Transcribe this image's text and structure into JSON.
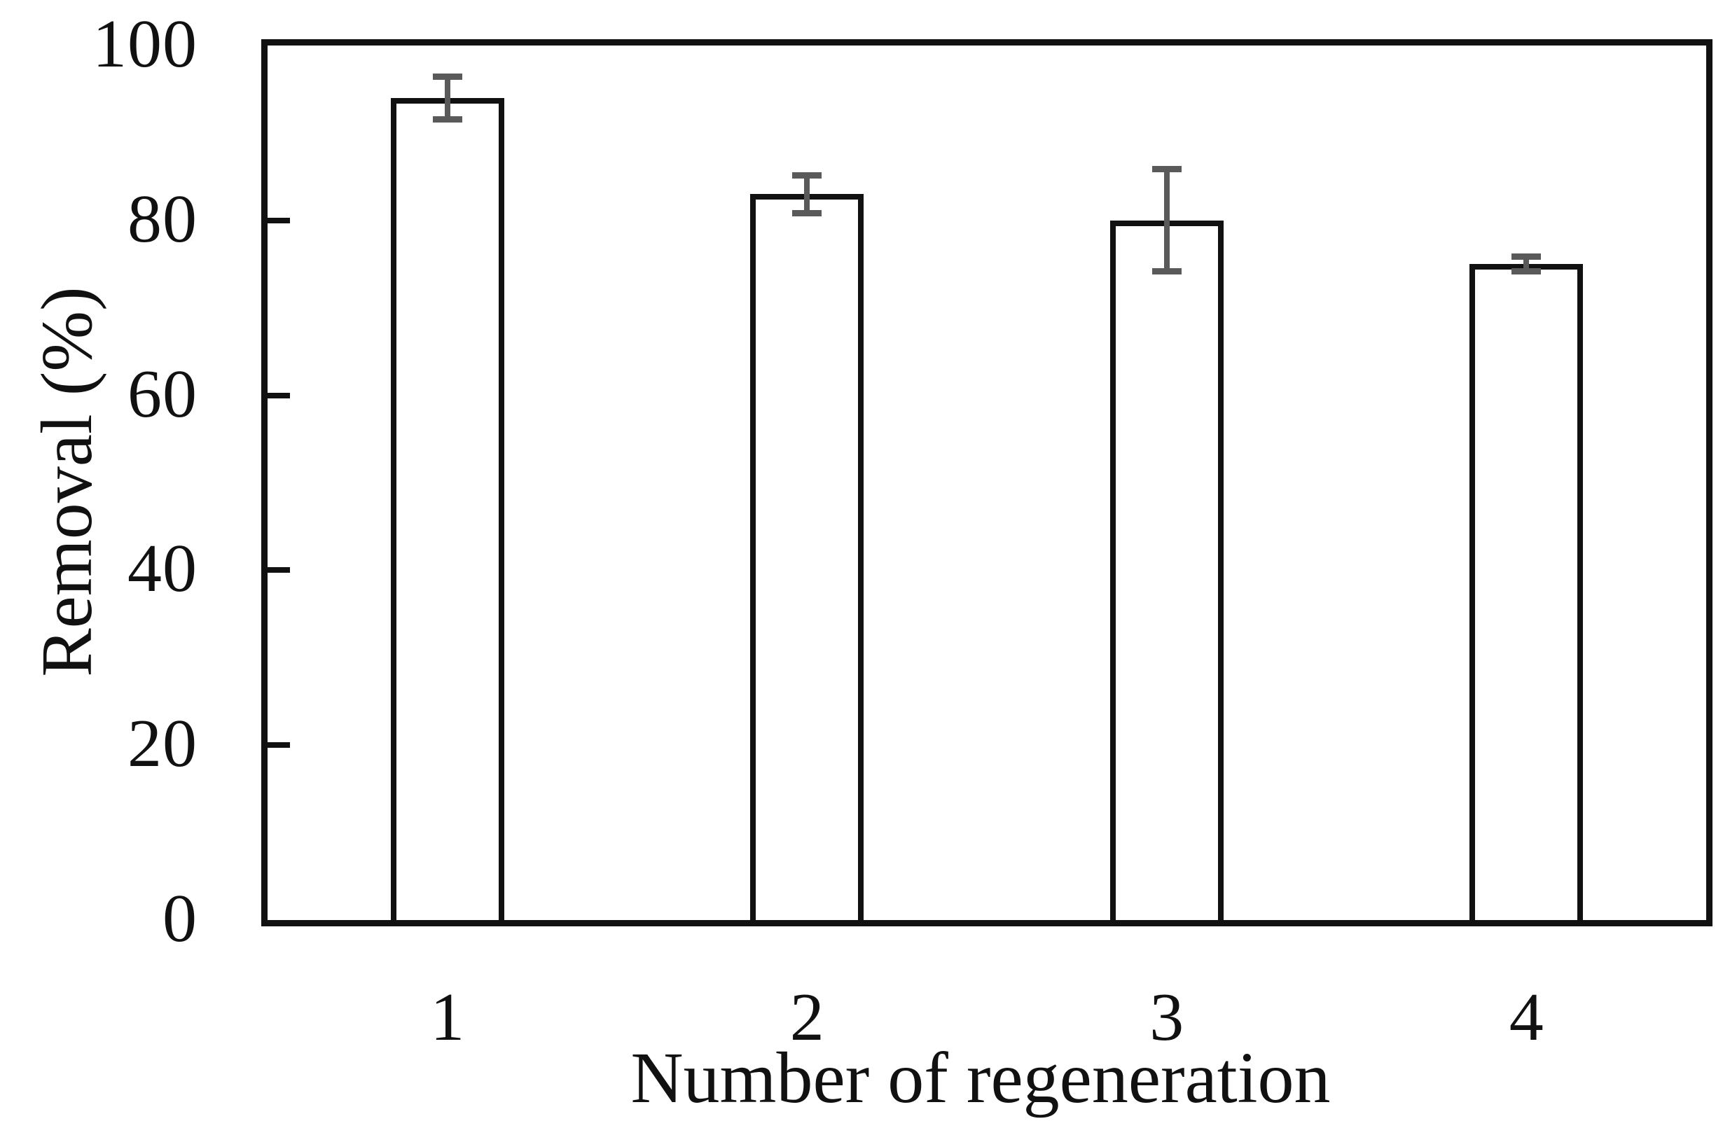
{
  "chart_data": {
    "type": "bar",
    "title": "",
    "xlabel": "Number of regeneration",
    "ylabel": "Removal (%)",
    "categories": [
      "1",
      "2",
      "3",
      "4"
    ],
    "values": [
      94,
      83,
      80,
      75
    ],
    "error_bars": [
      2.8,
      2.5,
      6.2,
      1.2
    ],
    "ylim": [
      0,
      100
    ],
    "yticks": [
      0,
      20,
      40,
      60,
      80,
      100
    ],
    "grid": false,
    "legend": false,
    "layout": {
      "bar_fill": "#ffffff",
      "bar_stroke": "#111111",
      "frame_stroke": "#111111",
      "error_color": "#5a5a5a",
      "background": "#ffffff"
    }
  }
}
